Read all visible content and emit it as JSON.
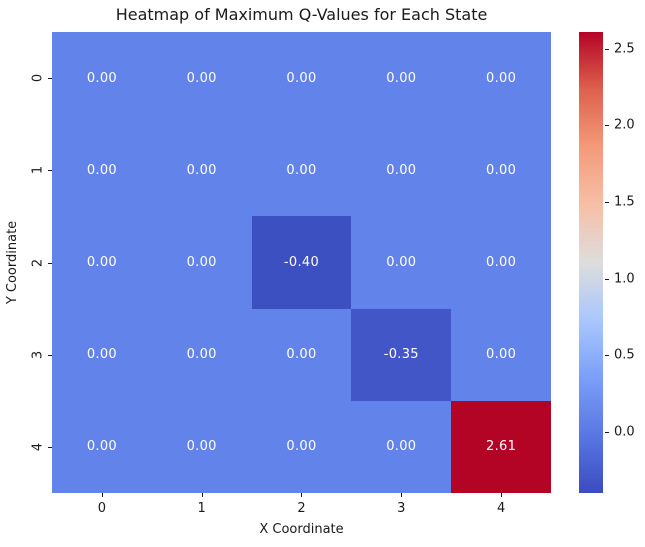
{
  "chart_data": {
    "type": "heatmap",
    "title": "Heatmap of Maximum Q-Values for Each State",
    "xlabel": "X Coordinate",
    "ylabel": "Y Coordinate",
    "x_tick_labels": [
      "0",
      "1",
      "2",
      "3",
      "4"
    ],
    "y_tick_labels": [
      "0",
      "1",
      "2",
      "3",
      "4"
    ],
    "values": [
      [
        0.0,
        0.0,
        0.0,
        0.0,
        0.0
      ],
      [
        0.0,
        0.0,
        0.0,
        0.0,
        0.0
      ],
      [
        0.0,
        0.0,
        -0.4,
        0.0,
        0.0
      ],
      [
        0.0,
        0.0,
        0.0,
        -0.35,
        0.0
      ],
      [
        0.0,
        0.0,
        0.0,
        0.0,
        2.61
      ]
    ],
    "annotations": [
      [
        "0.00",
        "0.00",
        "0.00",
        "0.00",
        "0.00"
      ],
      [
        "0.00",
        "0.00",
        "0.00",
        "0.00",
        "0.00"
      ],
      [
        "0.00",
        "0.00",
        "-0.40",
        "0.00",
        "0.00"
      ],
      [
        "0.00",
        "0.00",
        "0.00",
        "-0.35",
        "0.00"
      ],
      [
        "0.00",
        "0.00",
        "0.00",
        "0.00",
        "2.61"
      ]
    ],
    "cell_colors": [
      [
        "#6283E9",
        "#6283E9",
        "#6283E9",
        "#6283E9",
        "#6283E9"
      ],
      [
        "#6283E9",
        "#6283E9",
        "#6283E9",
        "#6283E9",
        "#6283E9"
      ],
      [
        "#6283E9",
        "#6283E9",
        "#3D50C2",
        "#6283E9",
        "#6283E9"
      ],
      [
        "#6283E9",
        "#6283E9",
        "#6283E9",
        "#4256C7",
        "#6283E9"
      ],
      [
        "#6283E9",
        "#6283E9",
        "#6283E9",
        "#6283E9",
        "#B40426"
      ]
    ],
    "colormap": "coolwarm",
    "vmin": -0.4,
    "vmax": 2.61,
    "colorbar_ticks": [
      {
        "value": 2.5,
        "label": "2.5"
      },
      {
        "value": 2.0,
        "label": "2.0"
      },
      {
        "value": 1.5,
        "label": "1.5"
      },
      {
        "value": 1.0,
        "label": "1.0"
      },
      {
        "value": 0.5,
        "label": "0.5"
      },
      {
        "value": 0.0,
        "label": "0.0"
      }
    ],
    "colorbar_gradient_bottom_to_top": [
      "#3B4CC0",
      "#5977E3",
      "#7B9FF9",
      "#AAC7FD",
      "#DDDDDD",
      "#F6BFA6",
      "#F49A7B",
      "#DE614D",
      "#B40426"
    ],
    "annotation_color": "#FFFFFF",
    "text_color": "#1A1A1A",
    "background_color": "#FFFFFF",
    "grid": false,
    "legend": false
  }
}
